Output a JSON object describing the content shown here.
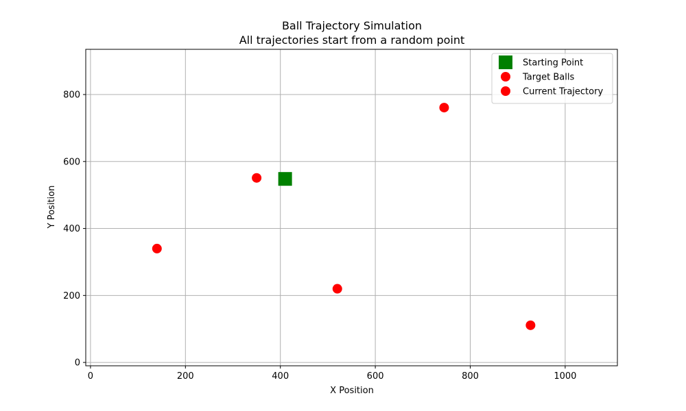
{
  "chart_data": {
    "type": "scatter",
    "title": "Ball Trajectory Simulation",
    "subtitle": "All trajectories start from a random point",
    "xlabel": "X Position",
    "ylabel": "Y Position",
    "xlim": [
      -10,
      1110
    ],
    "ylim": [
      -10,
      935
    ],
    "xticks": [
      0,
      200,
      400,
      600,
      800,
      1000
    ],
    "yticks": [
      0,
      200,
      400,
      600,
      800
    ],
    "grid": true,
    "legend_position": "top-right",
    "series": [
      {
        "name": "Starting Point",
        "marker": "square",
        "color": "#008000",
        "points": [
          {
            "x": 410,
            "y": 548
          }
        ]
      },
      {
        "name": "Target Balls",
        "marker": "circle",
        "color": "#ff0000",
        "points": [
          {
            "x": 140,
            "y": 340
          },
          {
            "x": 350,
            "y": 551
          },
          {
            "x": 520,
            "y": 220
          },
          {
            "x": 745,
            "y": 761
          },
          {
            "x": 927,
            "y": 111
          }
        ]
      },
      {
        "name": "Current Trajectory",
        "marker": "circle",
        "color": "#ff0000",
        "points": []
      }
    ]
  }
}
